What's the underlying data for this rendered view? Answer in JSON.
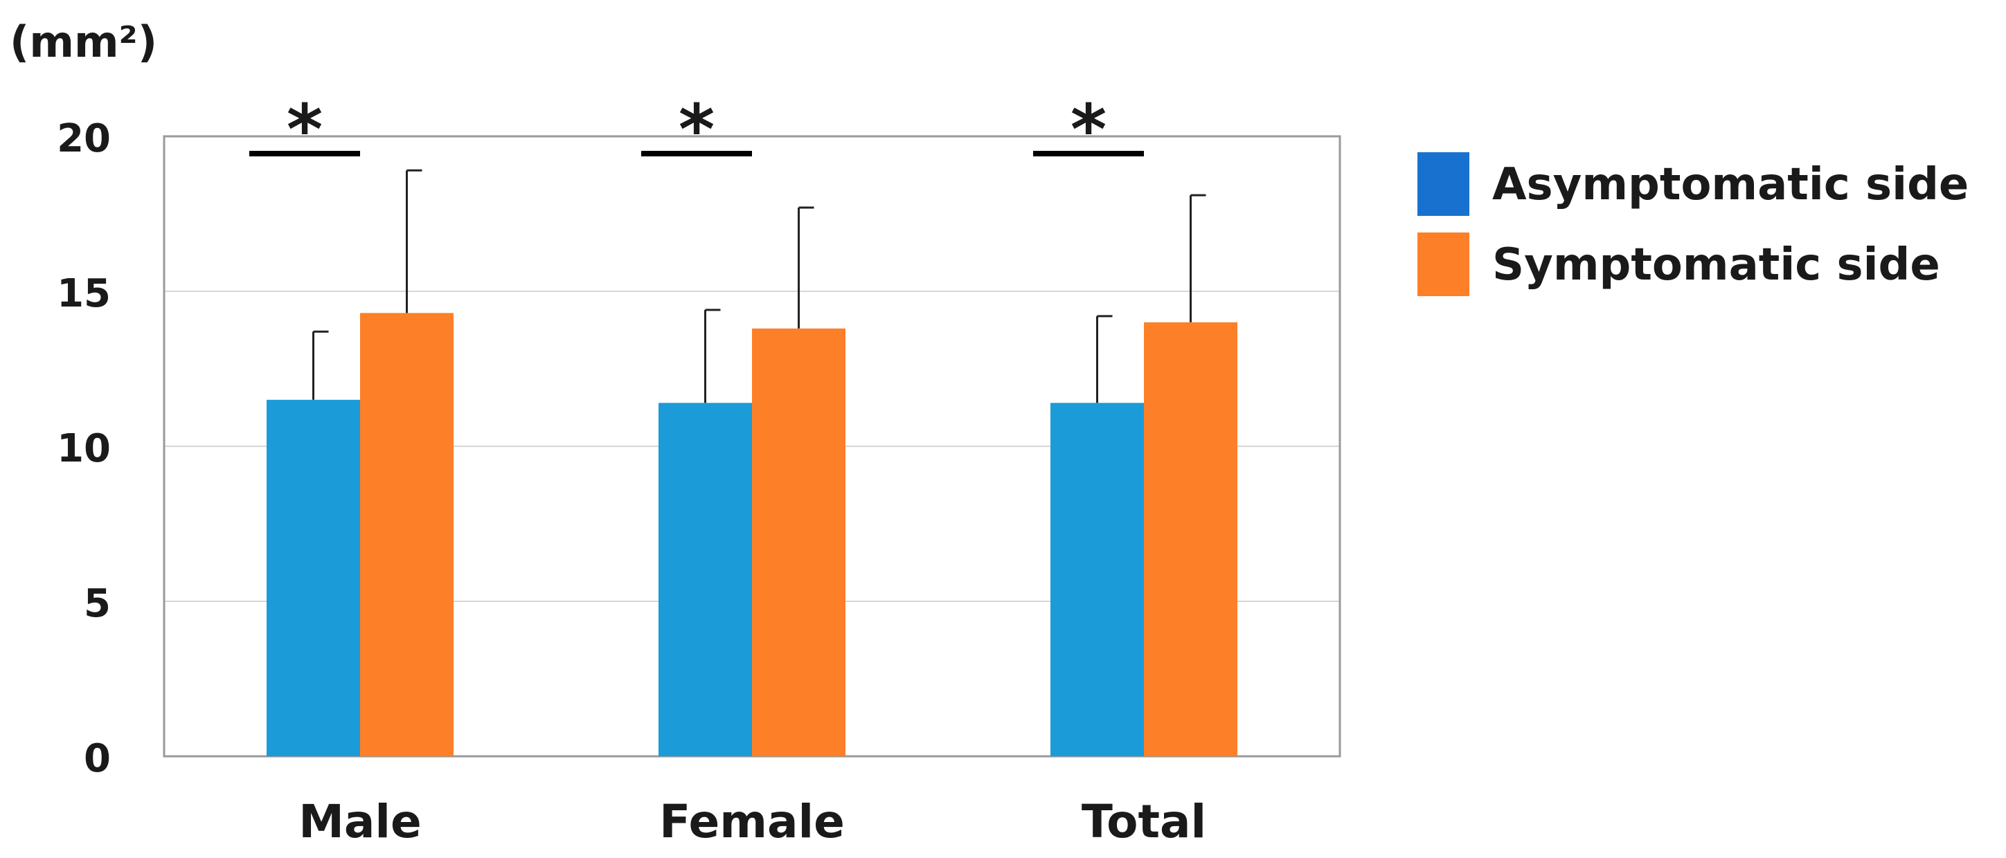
{
  "chart_data": {
    "type": "bar",
    "ylabel": "(mm²)",
    "ylim": [
      0,
      20
    ],
    "yticks": [
      "0",
      "5",
      "10",
      "15",
      "20"
    ],
    "categories": [
      "Male",
      "Female",
      "Total"
    ],
    "series": [
      {
        "name": "Asymptomatic side",
        "color": "#1b9bd7",
        "values": [
          11.5,
          11.4,
          11.4
        ],
        "error": [
          2.2,
          3.0,
          2.8
        ]
      },
      {
        "name": "Symptomatic side",
        "color": "#fd7f28",
        "values": [
          14.3,
          13.8,
          14.0
        ],
        "error": [
          4.6,
          3.9,
          4.1
        ]
      }
    ],
    "legend": {
      "position": "right",
      "items": [
        {
          "label": "Asymptomatic side",
          "color": "#1971cf"
        },
        {
          "label": "Symptomatic side",
          "color": "#fd7f28"
        }
      ]
    },
    "significance": [
      {
        "category": "Male",
        "marker": "*"
      },
      {
        "category": "Female",
        "marker": "*"
      },
      {
        "category": "Total",
        "marker": "*"
      }
    ],
    "grid": true
  }
}
